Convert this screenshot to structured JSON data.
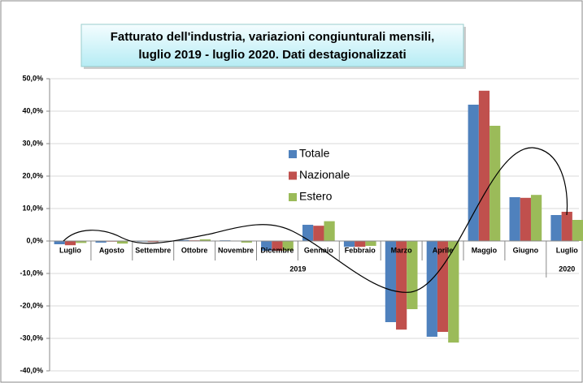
{
  "chart_data": {
    "type": "bar",
    "title": [
      "Fatturato dell'industria, variazioni congiunturali mensili,",
      "luglio 2019 - luglio 2020. Dati destagionalizzati"
    ],
    "categories": [
      "Luglio",
      "Agosto",
      "Settembre",
      "Ottobre",
      "Novembre",
      "Dicembre",
      "Gennaio",
      "Febbraio",
      "Marzo",
      "Aprile",
      "Maggio",
      "Giugno",
      "Luglio"
    ],
    "years": [
      "2019",
      "2020"
    ],
    "series": [
      {
        "name": "Totale",
        "color": "#4f81bd",
        "values": [
          -1,
          -0.5,
          -0.2,
          0.3,
          0.2,
          -3,
          5,
          -1.8,
          -25,
          -29.5,
          42,
          13.5,
          8
        ]
      },
      {
        "name": "Nazionale",
        "color": "#c0504d",
        "values": [
          -1.3,
          -0.2,
          -0.3,
          0.2,
          0.1,
          -3,
          4.7,
          -1.8,
          -27.3,
          -28,
          46.3,
          13.3,
          9
        ]
      },
      {
        "name": "Estero",
        "color": "#9bbb59",
        "values": [
          -0.6,
          -0.8,
          -0.1,
          0.5,
          -0.5,
          -3,
          6.1,
          -1.5,
          -21,
          -31.3,
          35.5,
          14.2,
          6.5
        ]
      }
    ],
    "ylim": [
      -40,
      50
    ],
    "yticks": [
      {
        "value": -40,
        "label": "-40,0%"
      },
      {
        "value": -30,
        "label": "-30,0%"
      },
      {
        "value": -20,
        "label": "-20,0%"
      },
      {
        "value": -10,
        "label": "-10,0%"
      },
      {
        "value": 0,
        "label": "0,0%"
      },
      {
        "value": 10,
        "label": "10,0%"
      },
      {
        "value": 20,
        "label": "20,0%"
      },
      {
        "value": 30,
        "label": "30,0%"
      },
      {
        "value": 40,
        "label": "40,0%"
      },
      {
        "value": 50,
        "label": "50,0%"
      }
    ],
    "grid": true
  }
}
